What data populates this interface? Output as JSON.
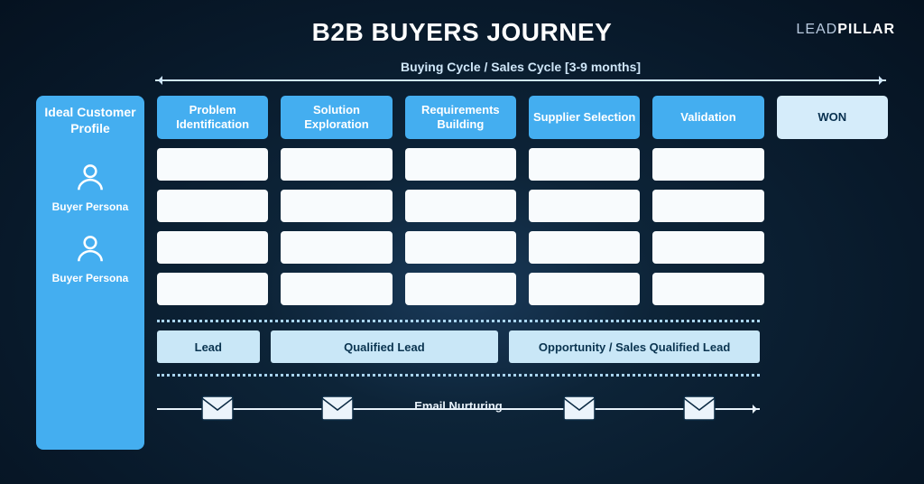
{
  "title": "B2B BUYERS JOURNEY",
  "logo": {
    "light": "LEAD",
    "bold": "PILLAR"
  },
  "cycle_label": "Buying Cycle / Sales Cycle [3-9 months]",
  "colors": {
    "stage_bg": "#44aef0",
    "won_bg": "#d5ecfa",
    "cell_bg": "#f8fbfd",
    "band_bg": "#c9e7f7",
    "page_bg_inner": "#1a3a5a",
    "page_bg_outer": "#051220",
    "dotted": "#a9d4ef",
    "arrow": "#cfe6f8",
    "text_dark": "#0a3450"
  },
  "sidebar": {
    "title": "Ideal Customer Profile",
    "personas": [
      {
        "label": "Buyer Persona"
      },
      {
        "label": "Buyer Persona"
      }
    ]
  },
  "stages": [
    {
      "label": "Problem Identification",
      "cells": 4
    },
    {
      "label": "Solution Exploration",
      "cells": 4
    },
    {
      "label": "Requirements Building",
      "cells": 4
    },
    {
      "label": "Supplier Selection",
      "cells": 4
    },
    {
      "label": "Validation",
      "cells": 4
    },
    {
      "label": "WON",
      "cells": 0,
      "won": true
    }
  ],
  "bands": [
    {
      "label": "Lead",
      "flex": 0.9
    },
    {
      "label": "Qualified Lead",
      "flex": 2
    },
    {
      "label": "Opportunity / Sales Qualified Lead",
      "flex": 2.2
    }
  ],
  "nurture": {
    "label": "Email Nurturing",
    "envelope_positions_pct": [
      10,
      30,
      70,
      90
    ]
  },
  "typography": {
    "title_fontsize": 28,
    "stage_fontsize": 13,
    "band_fontsize": 13,
    "persona_fontsize": 12
  }
}
